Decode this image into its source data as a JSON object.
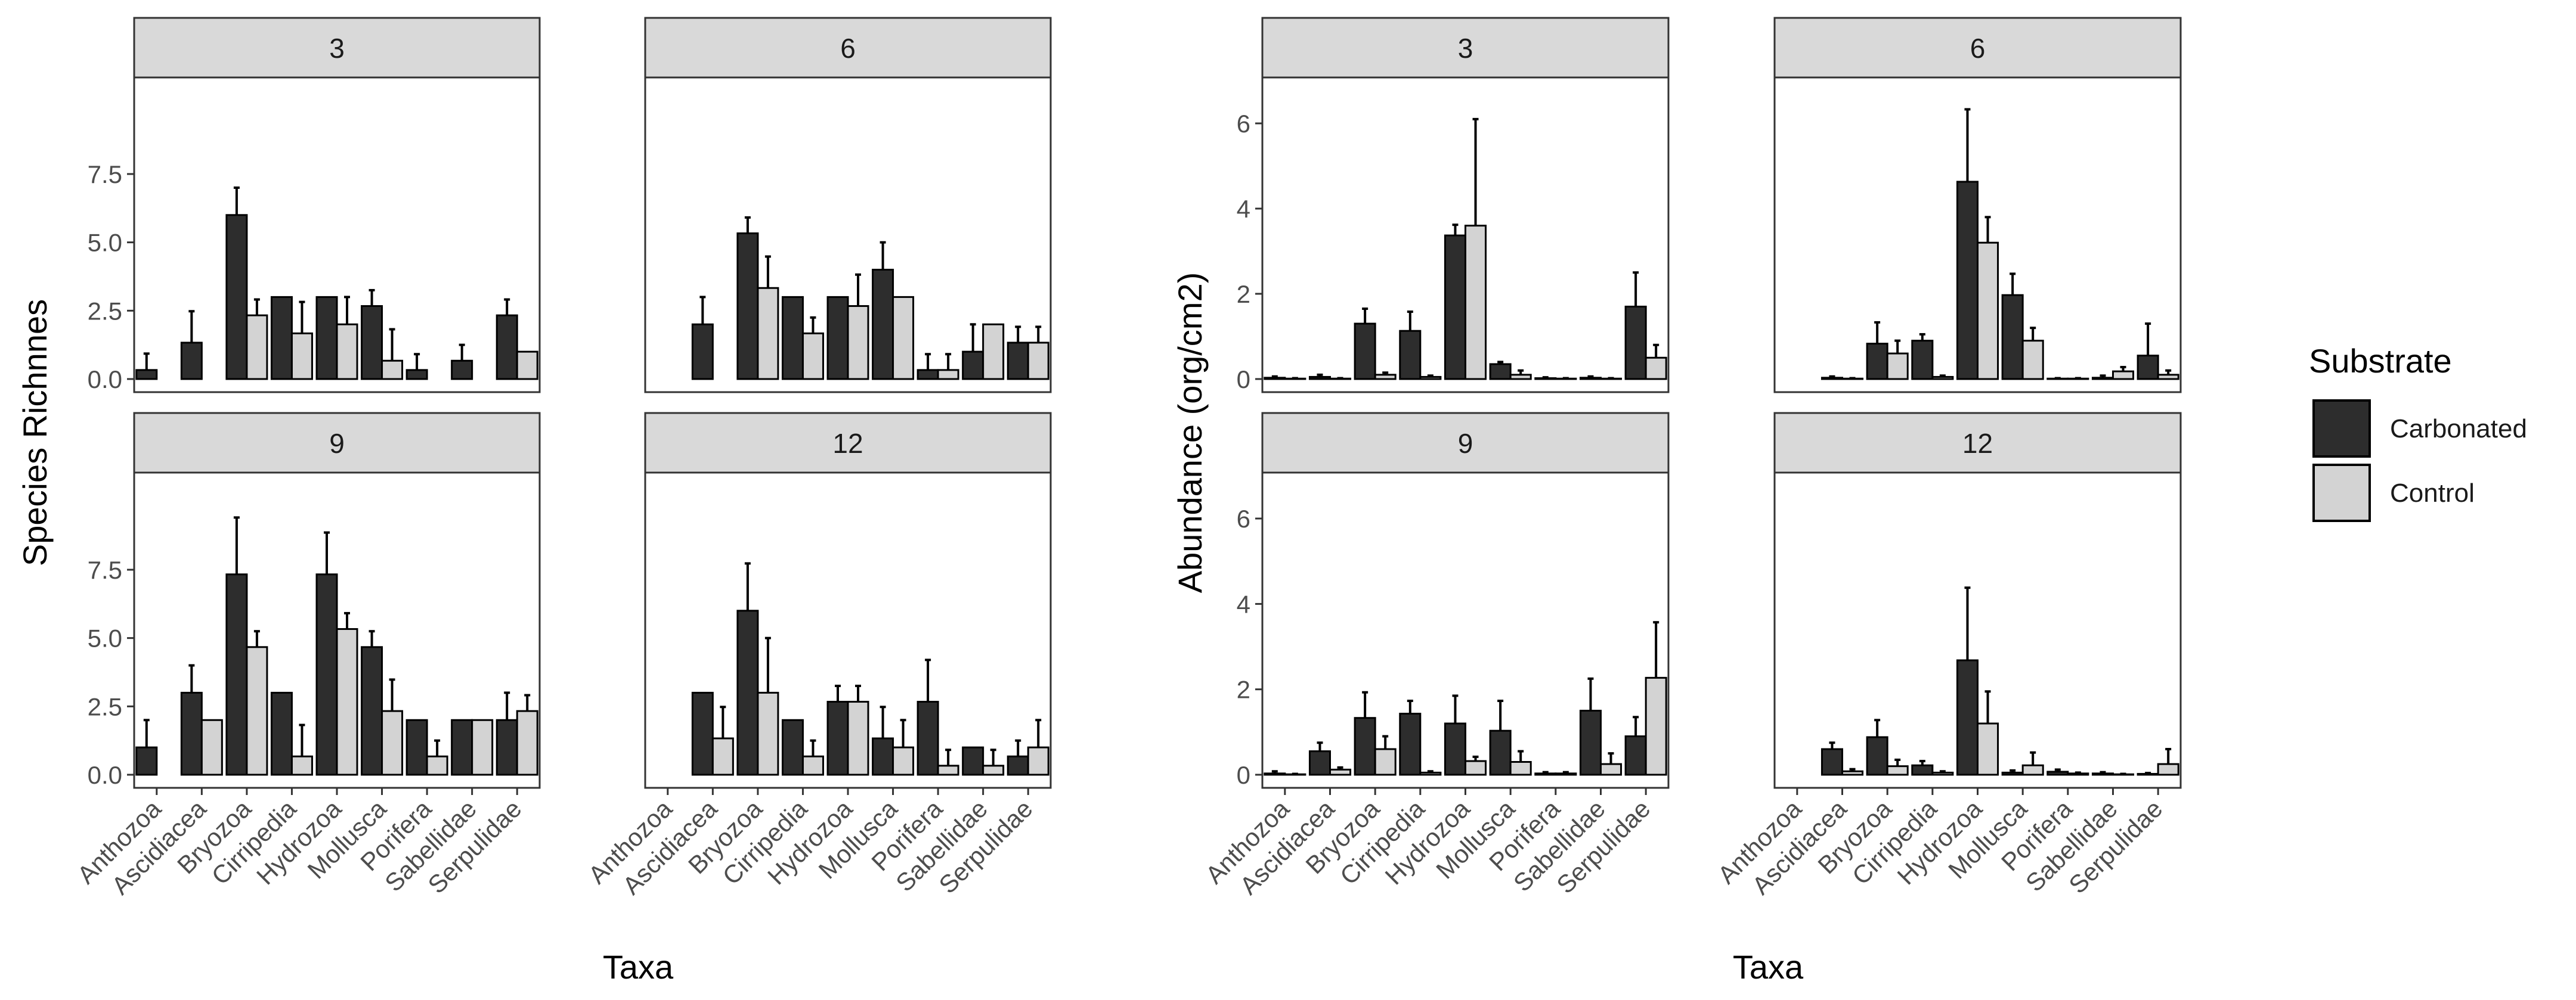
{
  "chart_data": [
    {
      "type": "bar",
      "xlabel": "Taxa",
      "ylabel": "Species Richnnes",
      "ylim": [
        0,
        9.8
      ],
      "yticks": [
        "0.0",
        "2.5",
        "5.0",
        "7.5"
      ],
      "categories": [
        "Anthozoa",
        "Ascidiacea",
        "Bryozoa",
        "Cirripedia",
        "Hydrozoa",
        "Mollusca",
        "Porifera",
        "Sabellidae",
        "Serpulidae"
      ],
      "grid": false,
      "panels": [
        {
          "title": "3",
          "series": [
            {
              "name": "Carbonated",
              "values": [
                0.33,
                1.33,
                6.0,
                3.0,
                3.0,
                2.67,
                0.33,
                0.67,
                2.33
              ],
              "error": [
                0.6,
                1.15,
                1.0,
                0.0,
                0.0,
                0.58,
                0.58,
                0.58,
                0.58
              ]
            },
            {
              "name": "Control",
              "values": [
                0.0,
                0.0,
                2.33,
                1.67,
                2.0,
                0.67,
                0.0,
                0.0,
                1.0
              ],
              "error": [
                0.0,
                0.0,
                0.58,
                1.15,
                1.0,
                1.15,
                0.0,
                0.0,
                0.0
              ]
            }
          ]
        },
        {
          "title": "6",
          "series": [
            {
              "name": "Carbonated",
              "values": [
                0.0,
                2.0,
                5.33,
                3.0,
                3.0,
                4.0,
                0.33,
                1.0,
                1.33
              ],
              "error": [
                0.0,
                1.0,
                0.58,
                0.0,
                0.0,
                1.0,
                0.58,
                1.0,
                0.58
              ]
            },
            {
              "name": "Control",
              "values": [
                0.0,
                0.0,
                3.33,
                1.67,
                2.67,
                3.0,
                0.33,
                2.0,
                1.33
              ],
              "error": [
                0.0,
                0.0,
                1.15,
                0.58,
                1.15,
                0.0,
                0.58,
                0.0,
                0.58
              ]
            }
          ]
        },
        {
          "title": "9",
          "series": [
            {
              "name": "Carbonated",
              "values": [
                1.0,
                3.0,
                7.33,
                3.0,
                7.33,
                4.67,
                2.0,
                2.0,
                2.0
              ],
              "error": [
                1.0,
                1.0,
                2.08,
                0.0,
                1.53,
                0.58,
                0.0,
                0.0,
                1.0
              ]
            },
            {
              "name": "Control",
              "values": [
                0.0,
                2.0,
                4.67,
                0.67,
                5.33,
                2.33,
                0.67,
                2.0,
                2.33
              ],
              "error": [
                0.0,
                0.0,
                0.58,
                1.15,
                0.58,
                1.15,
                0.58,
                0.0,
                0.58
              ]
            }
          ]
        },
        {
          "title": "12",
          "series": [
            {
              "name": "Carbonated",
              "values": [
                0.0,
                3.0,
                6.0,
                2.0,
                2.67,
                1.33,
                2.67,
                1.0,
                0.67
              ],
              "error": [
                0.0,
                0.0,
                1.73,
                0.0,
                0.58,
                1.15,
                1.53,
                0.0,
                0.58
              ]
            },
            {
              "name": "Control",
              "values": [
                0.0,
                1.33,
                3.0,
                0.67,
                2.67,
                1.0,
                0.33,
                0.33,
                1.0
              ],
              "error": [
                0.0,
                1.15,
                2.0,
                0.58,
                0.58,
                1.0,
                0.58,
                0.58,
                1.0
              ]
            }
          ]
        }
      ]
    },
    {
      "type": "bar",
      "xlabel": "Taxa",
      "ylabel": "Abundance (org/cm2)",
      "ylim": [
        0,
        6.8
      ],
      "yticks": [
        "0",
        "2",
        "4",
        "6"
      ],
      "categories": [
        "Anthozoa",
        "Ascidiacea",
        "Bryozoa",
        "Cirripedia",
        "Hydrozoa",
        "Mollusca",
        "Porifera",
        "Sabellidae",
        "Serpulidae"
      ],
      "grid": false,
      "panels": [
        {
          "title": "3",
          "series": [
            {
              "name": "Carbonated",
              "values": [
                0.03,
                0.05,
                1.3,
                1.13,
                3.37,
                0.35,
                0.02,
                0.03,
                1.7
              ],
              "error": [
                0.03,
                0.05,
                0.35,
                0.45,
                0.25,
                0.05,
                0.02,
                0.03,
                0.8
              ]
            },
            {
              "name": "Control",
              "values": [
                0.01,
                0.01,
                0.1,
                0.05,
                3.6,
                0.1,
                0.01,
                0.01,
                0.5
              ],
              "error": [
                0.01,
                0.01,
                0.05,
                0.03,
                2.5,
                0.1,
                0.01,
                0.01,
                0.3
              ]
            }
          ]
        },
        {
          "title": "6",
          "series": [
            {
              "name": "Carbonated",
              "values": [
                0.0,
                0.03,
                0.83,
                0.9,
                4.63,
                1.97,
                0.01,
                0.03,
                0.55
              ],
              "error": [
                0.0,
                0.03,
                0.5,
                0.15,
                1.7,
                0.5,
                0.01,
                0.05,
                0.75
              ]
            },
            {
              "name": "Control",
              "values": [
                0.0,
                0.01,
                0.6,
                0.05,
                3.2,
                0.9,
                0.01,
                0.18,
                0.1
              ],
              "error": [
                0.0,
                0.01,
                0.3,
                0.03,
                0.6,
                0.3,
                0.01,
                0.1,
                0.1
              ]
            }
          ]
        },
        {
          "title": "9",
          "series": [
            {
              "name": "Carbonated",
              "values": [
                0.03,
                0.55,
                1.33,
                1.43,
                1.2,
                1.03,
                0.03,
                1.5,
                0.9
              ],
              "error": [
                0.05,
                0.2,
                0.6,
                0.3,
                0.65,
                0.7,
                0.03,
                0.75,
                0.45
              ]
            },
            {
              "name": "Control",
              "values": [
                0.01,
                0.12,
                0.6,
                0.05,
                0.32,
                0.3,
                0.03,
                0.25,
                2.27
              ],
              "error": [
                0.01,
                0.05,
                0.3,
                0.03,
                0.1,
                0.25,
                0.03,
                0.25,
                1.3
              ]
            }
          ]
        },
        {
          "title": "12",
          "series": [
            {
              "name": "Carbonated",
              "values": [
                0.0,
                0.6,
                0.88,
                0.22,
                2.68,
                0.05,
                0.07,
                0.03,
                0.02
              ],
              "error": [
                0.0,
                0.15,
                0.4,
                0.1,
                1.7,
                0.05,
                0.05,
                0.03,
                0.02
              ]
            },
            {
              "name": "Control",
              "values": [
                0.0,
                0.08,
                0.2,
                0.05,
                1.2,
                0.22,
                0.03,
                0.01,
                0.25
              ],
              "error": [
                0.0,
                0.05,
                0.15,
                0.03,
                0.75,
                0.3,
                0.02,
                0.01,
                0.35
              ]
            }
          ]
        }
      ]
    }
  ],
  "legend": {
    "title": "Substrate",
    "entries": [
      "Carbonated",
      "Control"
    ],
    "placement": "right"
  },
  "colors": {
    "carbonated_fill": "#2d2d2d",
    "control_fill": "#d3d3d3",
    "strip_fill": "#d9d9d9",
    "frame": "#333333",
    "tick_text": "#4d4d4d",
    "axis_title": "#000000"
  }
}
